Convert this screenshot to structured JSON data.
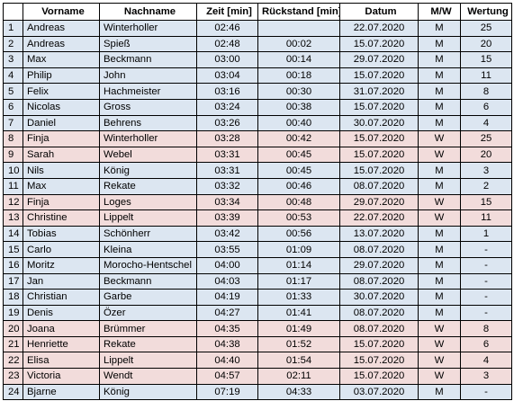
{
  "colors": {
    "male_row": "#dce6f1",
    "female_row": "#f2dcdb",
    "header_bg": "#ffffff",
    "border": "#000000"
  },
  "headers": [
    "",
    "Vorname",
    "Nachname",
    "Zeit [min]",
    "Rückstand [min]",
    "Datum",
    "M/W",
    "Wertung"
  ],
  "rows": [
    {
      "rank": "1",
      "first": "Andreas",
      "last": "Winterholler",
      "time": "02:46",
      "behind": "",
      "date": "22.07.2020",
      "gender": "M",
      "score": "25"
    },
    {
      "rank": "2",
      "first": "Andreas",
      "last": "Spieß",
      "time": "02:48",
      "behind": "00:02",
      "date": "15.07.2020",
      "gender": "M",
      "score": "20"
    },
    {
      "rank": "3",
      "first": "Max",
      "last": "Beckmann",
      "time": "03:00",
      "behind": "00:14",
      "date": "29.07.2020",
      "gender": "M",
      "score": "15"
    },
    {
      "rank": "4",
      "first": "Philip",
      "last": "John",
      "time": "03:04",
      "behind": "00:18",
      "date": "15.07.2020",
      "gender": "M",
      "score": "11"
    },
    {
      "rank": "5",
      "first": "Felix",
      "last": "Hachmeister",
      "time": "03:16",
      "behind": "00:30",
      "date": "31.07.2020",
      "gender": "M",
      "score": "8"
    },
    {
      "rank": "6",
      "first": "Nicolas",
      "last": "Gross",
      "time": "03:24",
      "behind": "00:38",
      "date": "15.07.2020",
      "gender": "M",
      "score": "6"
    },
    {
      "rank": "7",
      "first": "Daniel",
      "last": "Behrens",
      "time": "03:26",
      "behind": "00:40",
      "date": "30.07.2020",
      "gender": "M",
      "score": "4"
    },
    {
      "rank": "8",
      "first": "Finja",
      "last": "Winterholler",
      "time": "03:28",
      "behind": "00:42",
      "date": "15.07.2020",
      "gender": "W",
      "score": "25"
    },
    {
      "rank": "9",
      "first": "Sarah",
      "last": "Webel",
      "time": "03:31",
      "behind": "00:45",
      "date": "15.07.2020",
      "gender": "W",
      "score": "20"
    },
    {
      "rank": "10",
      "first": "Nils",
      "last": "König",
      "time": "03:31",
      "behind": "00:45",
      "date": "15.07.2020",
      "gender": "M",
      "score": "3"
    },
    {
      "rank": "11",
      "first": "Max",
      "last": "Rekate",
      "time": "03:32",
      "behind": "00:46",
      "date": "08.07.2020",
      "gender": "M",
      "score": "2"
    },
    {
      "rank": "12",
      "first": "Finja",
      "last": "Loges",
      "time": "03:34",
      "behind": "00:48",
      "date": "29.07.2020",
      "gender": "W",
      "score": "15"
    },
    {
      "rank": "13",
      "first": "Christine",
      "last": "Lippelt",
      "time": "03:39",
      "behind": "00:53",
      "date": "22.07.2020",
      "gender": "W",
      "score": "11"
    },
    {
      "rank": "14",
      "first": "Tobias",
      "last": "Schönherr",
      "time": "03:42",
      "behind": "00:56",
      "date": "13.07.2020",
      "gender": "M",
      "score": "1"
    },
    {
      "rank": "15",
      "first": "Carlo",
      "last": "Kleina",
      "time": "03:55",
      "behind": "01:09",
      "date": "08.07.2020",
      "gender": "M",
      "score": "-"
    },
    {
      "rank": "16",
      "first": "Moritz",
      "last": "Morocho-Hentschel",
      "time": "04:00",
      "behind": "01:14",
      "date": "29.07.2020",
      "gender": "M",
      "score": "-"
    },
    {
      "rank": "17",
      "first": "Jan",
      "last": "Beckmann",
      "time": "04:03",
      "behind": "01:17",
      "date": "08.07.2020",
      "gender": "M",
      "score": "-"
    },
    {
      "rank": "18",
      "first": "Christian",
      "last": "Garbe",
      "time": "04:19",
      "behind": "01:33",
      "date": "30.07.2020",
      "gender": "M",
      "score": "-"
    },
    {
      "rank": "19",
      "first": "Denis",
      "last": "Özer",
      "time": "04:27",
      "behind": "01:41",
      "date": "08.07.2020",
      "gender": "M",
      "score": "-"
    },
    {
      "rank": "20",
      "first": "Joana",
      "last": "Brümmer",
      "time": "04:35",
      "behind": "01:49",
      "date": "08.07.2020",
      "gender": "W",
      "score": "8"
    },
    {
      "rank": "21",
      "first": "Henriette",
      "last": "Rekate",
      "time": "04:38",
      "behind": "01:52",
      "date": "15.07.2020",
      "gender": "W",
      "score": "6"
    },
    {
      "rank": "22",
      "first": "Elisa",
      "last": "Lippelt",
      "time": "04:40",
      "behind": "01:54",
      "date": "15.07.2020",
      "gender": "W",
      "score": "4"
    },
    {
      "rank": "23",
      "first": "Victoria",
      "last": "Wendt",
      "time": "04:57",
      "behind": "02:11",
      "date": "15.07.2020",
      "gender": "W",
      "score": "3"
    },
    {
      "rank": "24",
      "first": "Bjarne",
      "last": "König",
      "time": "07:19",
      "behind": "04:33",
      "date": "03.07.2020",
      "gender": "M",
      "score": "-"
    }
  ]
}
